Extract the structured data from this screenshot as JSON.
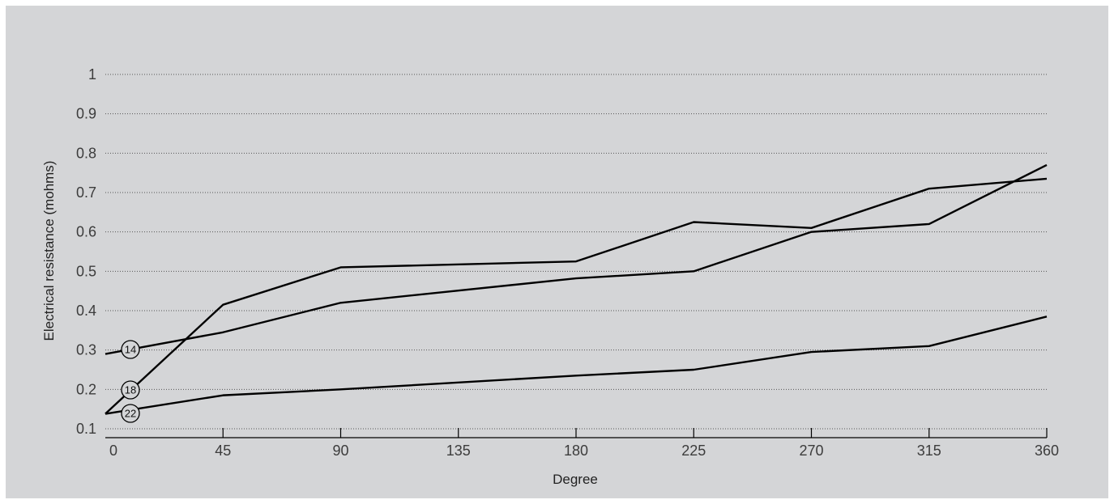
{
  "chart_data": {
    "type": "line",
    "xlabel": "Degree",
    "ylabel": "Electrical resistance (mohms)",
    "x": [
      0,
      45,
      90,
      135,
      180,
      225,
      270,
      315,
      360
    ],
    "xlim": [
      0,
      360
    ],
    "ylim": [
      0.1,
      1.0
    ],
    "xticks": [
      "0",
      "45",
      "90",
      "135",
      "180",
      "225",
      "270",
      "315",
      "360"
    ],
    "yticks": [
      "0.1",
      "0.2",
      "0.3",
      "0.4",
      "0.5",
      "0.6",
      "0.7",
      "0.8",
      "0.9",
      "1"
    ],
    "grid": "horizontal dotted",
    "legend": "none",
    "series": [
      {
        "name": "14",
        "x": [
          0,
          45,
          90,
          180,
          225,
          270,
          315,
          360
        ],
        "values": [
          0.29,
          0.345,
          0.42,
          0.482,
          0.5,
          0.6,
          0.62,
          0.77
        ]
      },
      {
        "name": "18",
        "x": [
          0,
          45,
          90,
          180,
          225,
          270,
          315,
          360
        ],
        "values": [
          0.138,
          0.415,
          0.51,
          0.525,
          0.625,
          0.61,
          0.71,
          0.735
        ]
      },
      {
        "name": "22",
        "x": [
          0,
          45,
          90,
          180,
          225,
          270,
          315,
          360
        ],
        "values": [
          0.138,
          0.185,
          0.2,
          0.235,
          0.25,
          0.295,
          0.31,
          0.385
        ]
      }
    ],
    "line_color": "#000000",
    "background_color": "#d4d5d7",
    "grid_color": "#555555"
  }
}
